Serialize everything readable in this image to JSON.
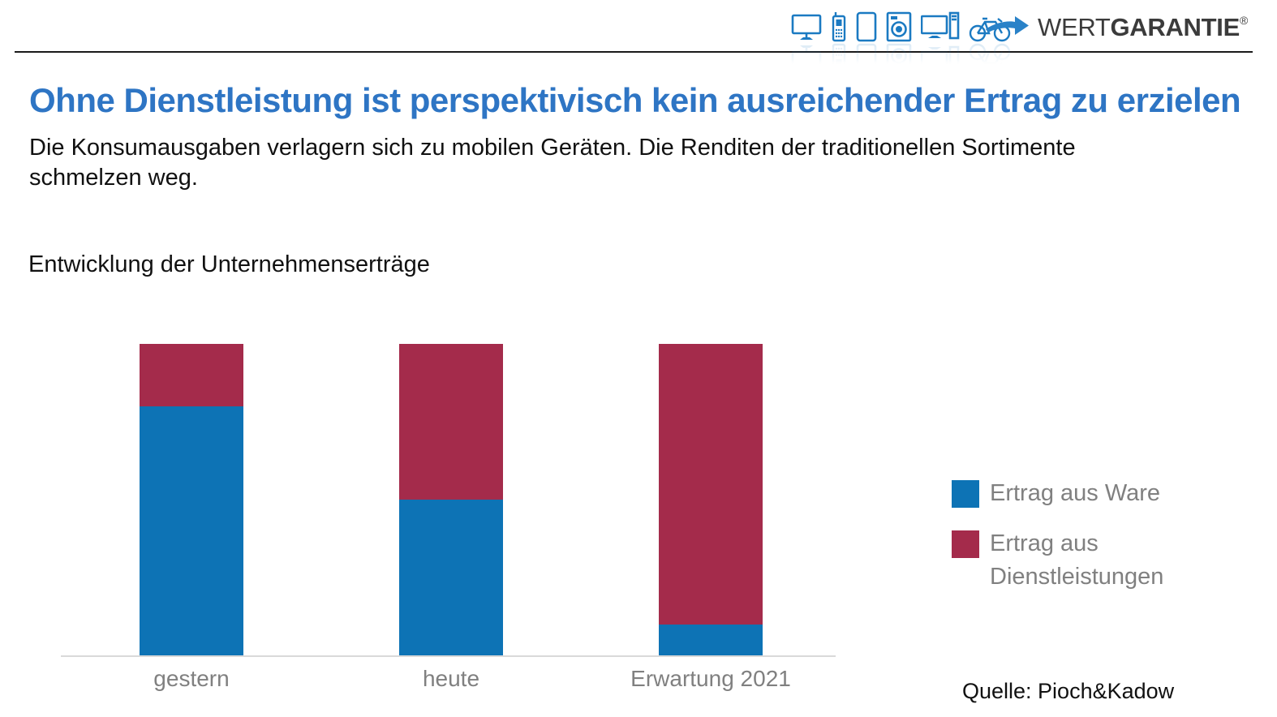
{
  "header": {
    "device_icons": [
      "tv-icon",
      "mobile-phone-icon",
      "tablet-icon",
      "washing-machine-icon",
      "desktop-computer-icon",
      "bicycle-icon"
    ],
    "logo": {
      "brand_light": "WERT",
      "brand_bold": "GARANTIE",
      "registered_mark": "®"
    }
  },
  "slide": {
    "title": "Ohne Dienstleistung ist perspektivisch kein ausreichender Ertrag zu erzielen",
    "subtitle": "Die Konsumausgaben verlagern sich zu mobilen Geräten. Die Renditen der traditionellen Sortimente schmelzen weg.",
    "chart_title": "Entwicklung der Unternehmenserträge",
    "source": "Quelle: Pioch&Kadow"
  },
  "colors": {
    "title_blue": "#2e75c4",
    "bar_blue": "#0d73b5",
    "bar_red": "#a42b4b",
    "axis_line": "#d9d9d9",
    "gray_text": "#808080",
    "icon_blue": "#1b7ac2",
    "logo_arrow": "#2a82c8"
  },
  "chart_data": {
    "type": "bar",
    "stacked": true,
    "title": "Entwicklung der Unternehmenserträge",
    "categories": [
      "gestern",
      "heute",
      "Erwartung 2021"
    ],
    "series": [
      {
        "name": "Ertrag aus Ware",
        "color": "#0d73b5",
        "values": [
          80,
          50,
          10
        ]
      },
      {
        "name": "Ertrag aus Dienstleistungen",
        "color": "#a42b4b",
        "values": [
          20,
          50,
          90
        ]
      }
    ],
    "values_are_percent_estimates": true,
    "ylim": [
      0,
      100
    ],
    "grid": false,
    "legend_position": "right"
  }
}
